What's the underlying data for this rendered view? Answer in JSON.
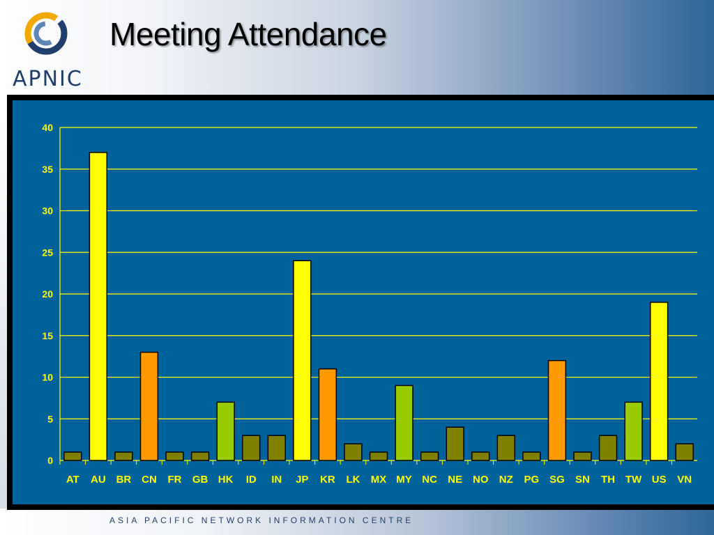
{
  "header": {
    "title": "Meeting Attendance",
    "logo_text": "APNIC"
  },
  "footer": {
    "text": "ASIA PACIFIC NETWORK INFORMATION CENTRE"
  },
  "colors": {
    "background_panel": "#00629a",
    "gridline": "#ffff00",
    "tick_text": "#ffff00",
    "bar_yellow": "#ffff00",
    "bar_orange": "#ff9900",
    "bar_green": "#99cc00",
    "bar_olive": "#808000"
  },
  "chart_data": {
    "type": "bar",
    "title": "Meeting Attendance",
    "xlabel": "",
    "ylabel": "",
    "ylim": [
      0,
      40
    ],
    "yticks": [
      0,
      5,
      10,
      15,
      20,
      25,
      30,
      35,
      40
    ],
    "grid": true,
    "legend": "none",
    "categories": [
      "AT",
      "AU",
      "BR",
      "CN",
      "FR",
      "GB",
      "HK",
      "ID",
      "IN",
      "JP",
      "KR",
      "LK",
      "MX",
      "MY",
      "NC",
      "NE",
      "NO",
      "NZ",
      "PG",
      "SG",
      "SN",
      "TH",
      "TW",
      "US",
      "VN"
    ],
    "values": [
      1,
      37,
      1,
      13,
      1,
      1,
      7,
      3,
      3,
      24,
      11,
      2,
      1,
      9,
      1,
      4,
      1,
      3,
      1,
      12,
      1,
      3,
      7,
      19,
      2
    ],
    "bar_colors": [
      "#808000",
      "#ffff00",
      "#808000",
      "#ff9900",
      "#808000",
      "#808000",
      "#99cc00",
      "#808000",
      "#808000",
      "#ffff00",
      "#ff9900",
      "#808000",
      "#808000",
      "#99cc00",
      "#808000",
      "#808000",
      "#808000",
      "#808000",
      "#808000",
      "#ff9900",
      "#808000",
      "#808000",
      "#99cc00",
      "#ffff00",
      "#808000"
    ]
  }
}
